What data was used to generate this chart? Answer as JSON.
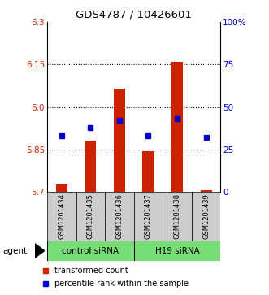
{
  "title": "GDS4787 / 10426601",
  "categories": [
    "GSM1201434",
    "GSM1201435",
    "GSM1201436",
    "GSM1201437",
    "GSM1201438",
    "GSM1201439"
  ],
  "red_values": [
    5.725,
    5.88,
    6.065,
    5.845,
    6.16,
    5.705
  ],
  "blue_values": [
    33,
    38,
    42,
    33,
    43,
    32
  ],
  "ylim_left": [
    5.7,
    6.3
  ],
  "ylim_right": [
    0,
    100
  ],
  "yticks_left": [
    5.7,
    5.85,
    6.0,
    6.15,
    6.3
  ],
  "yticks_right": [
    0,
    25,
    50,
    75,
    100
  ],
  "ytick_labels_right": [
    "0",
    "25",
    "50",
    "75",
    "100%"
  ],
  "hlines": [
    5.85,
    6.0,
    6.15
  ],
  "group1_label": "control siRNA",
  "group2_label": "H19 siRNA",
  "group1_indices": [
    0,
    1,
    2
  ],
  "group2_indices": [
    3,
    4,
    5
  ],
  "agent_label": "agent",
  "legend_red": "transformed count",
  "legend_blue": "percentile rank within the sample",
  "red_color": "#cc2200",
  "blue_color": "#0000cc",
  "bar_bottom": 5.7,
  "green_color": "#77dd77",
  "gray_color": "#cccccc",
  "bar_width": 0.4
}
